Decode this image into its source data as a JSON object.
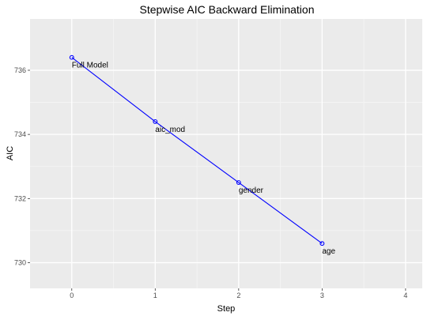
{
  "chart_data": {
    "type": "line",
    "title": "Stepwise AIC Backward Elimination",
    "xlabel": "Step",
    "ylabel": "AIC",
    "xlim": [
      -0.5,
      4.2
    ],
    "ylim": [
      729.2,
      737.6
    ],
    "xticks": [
      0,
      1,
      2,
      3,
      4
    ],
    "yticks": [
      730,
      732,
      734,
      736
    ],
    "grid": true,
    "series": [
      {
        "x": [
          0,
          1,
          2,
          3
        ],
        "y": [
          736.4,
          734.4,
          732.5,
          730.6
        ],
        "labels": [
          "Full Model",
          "aic_mod",
          "gender",
          "age"
        ],
        "color": "#0000ff"
      }
    ],
    "colors": {
      "panel": "#ebebeb",
      "grid_major": "#ffffff",
      "grid_minor": "#f5f5f5",
      "tick_text": "#4d4d4d",
      "tick_mark": "#333333"
    }
  }
}
